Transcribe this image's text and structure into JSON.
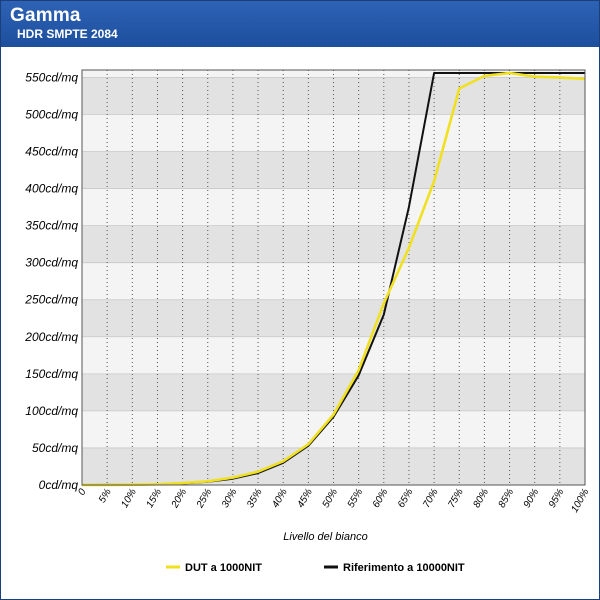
{
  "header": {
    "title": "Gamma",
    "subtitle": "HDR SMPTE 2084"
  },
  "colors": {
    "header_bg": "#2563b0",
    "dut_line": "#f0e020",
    "ref_line": "#111111",
    "band_dark": "#e2e2e2",
    "band_light": "#f4f4f4"
  },
  "chart_data": {
    "type": "line",
    "title": "Gamma",
    "subtitle": "HDR SMPTE 2084",
    "xlabel": "Livello del bianco",
    "ylabel": "",
    "x": [
      0,
      5,
      10,
      15,
      20,
      25,
      30,
      35,
      40,
      45,
      50,
      55,
      60,
      65,
      70,
      75,
      80,
      85,
      90,
      95,
      100
    ],
    "x_tick_labels": [
      "0",
      "5%",
      "10%",
      "15%",
      "20%",
      "25%",
      "30%",
      "35%",
      "40%",
      "45%",
      "50%",
      "55%",
      "60%",
      "65%",
      "70%",
      "75%",
      "80%",
      "85%",
      "90%",
      "95%",
      "100%"
    ],
    "y_ticks": [
      0,
      50,
      100,
      150,
      200,
      250,
      300,
      350,
      400,
      450,
      500,
      550
    ],
    "y_tick_labels": [
      "0cd/mq",
      "50cd/mq",
      "100cd/mq",
      "150cd/mq",
      "200cd/mq",
      "250cd/mq",
      "300cd/mq",
      "350cd/mq",
      "400cd/mq",
      "450cd/mq",
      "500cd/mq",
      "550cd/mq"
    ],
    "xlim": [
      0,
      100
    ],
    "ylim": [
      0,
      560
    ],
    "grid": true,
    "legend_position": "bottom",
    "series": [
      {
        "name": "DUT a 1000NIT",
        "color": "#f0e020",
        "values": [
          0,
          0,
          0.3,
          1,
          2.5,
          5,
          10,
          18,
          32,
          55,
          95,
          155,
          245,
          320,
          410,
          535,
          552,
          556,
          551,
          550,
          548
        ]
      },
      {
        "name": "Riferimento a 10000NIT",
        "color": "#111111",
        "values": [
          0,
          0.1,
          0.3,
          0.8,
          2,
          4.5,
          8.5,
          16,
          30,
          53,
          92,
          148,
          230,
          375,
          556,
          556,
          556,
          556,
          556,
          556,
          556
        ]
      }
    ]
  }
}
